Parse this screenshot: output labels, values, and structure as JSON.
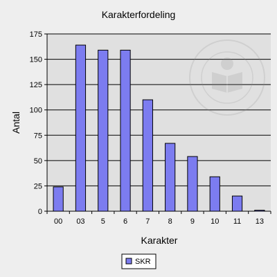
{
  "chart_data": {
    "type": "bar",
    "title": "Karakterfordeling",
    "xlabel": "Karakter",
    "ylabel": "Antal",
    "categories": [
      "00",
      "03",
      "5",
      "6",
      "7",
      "8",
      "9",
      "10",
      "11",
      "13"
    ],
    "series": [
      {
        "name": "SKR",
        "values": [
          24,
          164,
          159,
          159,
          110,
          67,
          54,
          34,
          15,
          1
        ]
      }
    ],
    "ylim": [
      0,
      175
    ],
    "yticks": [
      0,
      25,
      50,
      75,
      100,
      125,
      150,
      175
    ],
    "grid": true,
    "legend": "bottom",
    "colors": {
      "bar": "#7c7cf0",
      "bar_stroke": "#000000",
      "plot_background": "#e0e0e0",
      "page_background": "#eeeeee",
      "gridline": "#000000"
    }
  }
}
